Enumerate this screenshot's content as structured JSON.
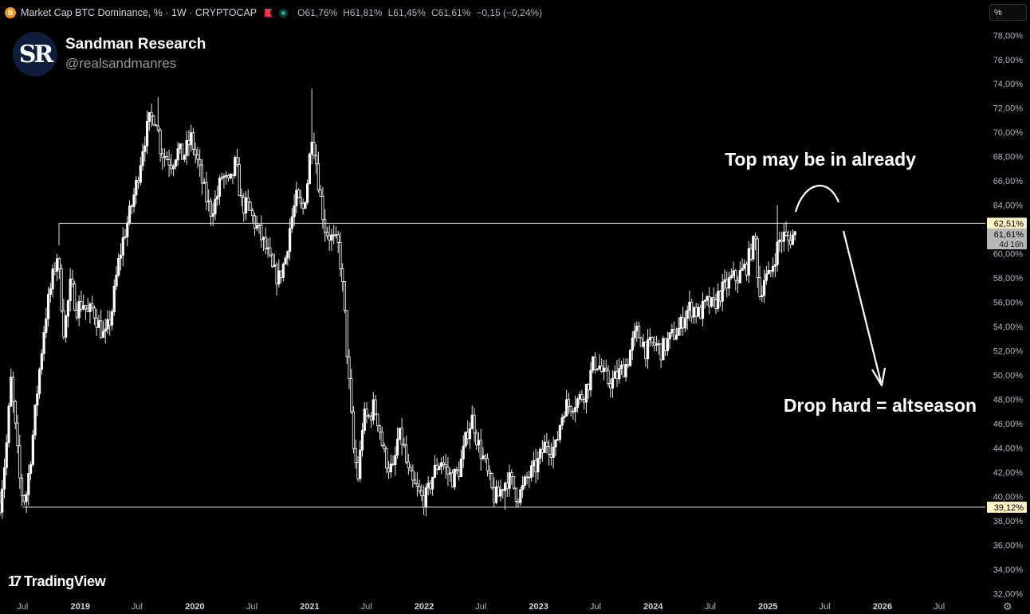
{
  "header": {
    "symbol_icon": "B",
    "title": "Market Cap BTC Dominance, % · 1W · CRYPTOCAP",
    "ohlc": [
      {
        "k": "O",
        "v": "61,76%"
      },
      {
        "k": "H",
        "v": "61,81%"
      },
      {
        "k": "L",
        "v": "61,45%"
      },
      {
        "k": "C",
        "v": "61,61%"
      },
      {
        "k": "",
        "v": "−0,15 (−0,24%)"
      }
    ],
    "scale_button": "%"
  },
  "brand": {
    "logo_text": "SR",
    "name": "Sandman Research",
    "handle": "@realsandmanres"
  },
  "footer": {
    "tradingview_mark": "17",
    "tradingview_label": "TradingView",
    "settings_icon": "gear-icon"
  },
  "colors": {
    "background": "#000000",
    "candle": "#ffffff",
    "level_label_bg": "#fff3c4",
    "current_label_bg": "#b7b7b7",
    "axis_text": "#b2b5be"
  },
  "chart_data": {
    "type": "candlestick",
    "interval": "1W",
    "ylim": [
      31.3,
      79.2
    ],
    "xlim": [
      "2018-04-20",
      "2026-11-25"
    ],
    "y_ticks": [
      {
        "v": 78,
        "label": "78,00%"
      },
      {
        "v": 76,
        "label": "76,00%"
      },
      {
        "v": 74,
        "label": "74,00%"
      },
      {
        "v": 72,
        "label": "72,00%"
      },
      {
        "v": 70,
        "label": "70,00%"
      },
      {
        "v": 68,
        "label": "68,00%"
      },
      {
        "v": 66,
        "label": "66,00%"
      },
      {
        "v": 64,
        "label": "64,00%"
      },
      {
        "v": 60,
        "label": "60,00%"
      },
      {
        "v": 58,
        "label": "58,00%"
      },
      {
        "v": 56,
        "label": "56,00%"
      },
      {
        "v": 54,
        "label": "54,00%"
      },
      {
        "v": 52,
        "label": "52,00%"
      },
      {
        "v": 50,
        "label": "50,00%"
      },
      {
        "v": 48,
        "label": "48,00%"
      },
      {
        "v": 46,
        "label": "46,00%"
      },
      {
        "v": 44,
        "label": "44,00%"
      },
      {
        "v": 42,
        "label": "42,00%"
      },
      {
        "v": 40,
        "label": "40,00%"
      },
      {
        "v": 38,
        "label": "38,00%"
      },
      {
        "v": 36,
        "label": "36,00%"
      },
      {
        "v": 34,
        "label": "34,00%"
      },
      {
        "v": 32,
        "label": "32,00%"
      }
    ],
    "x_ticks": [
      {
        "date": "2018-07-01",
        "label": "Jul",
        "bold": false
      },
      {
        "date": "2019-01-01",
        "label": "2019",
        "bold": true
      },
      {
        "date": "2019-07-01",
        "label": "Jul",
        "bold": false
      },
      {
        "date": "2020-01-01",
        "label": "2020",
        "bold": true
      },
      {
        "date": "2020-07-01",
        "label": "Jul",
        "bold": false
      },
      {
        "date": "2021-01-01",
        "label": "2021",
        "bold": true
      },
      {
        "date": "2021-07-01",
        "label": "Jul",
        "bold": false
      },
      {
        "date": "2022-01-01",
        "label": "2022",
        "bold": true
      },
      {
        "date": "2022-07-01",
        "label": "Jul",
        "bold": false
      },
      {
        "date": "2023-01-01",
        "label": "2023",
        "bold": true
      },
      {
        "date": "2023-07-01",
        "label": "Jul",
        "bold": false
      },
      {
        "date": "2024-01-01",
        "label": "2024",
        "bold": true
      },
      {
        "date": "2024-07-01",
        "label": "Jul",
        "bold": false
      },
      {
        "date": "2025-01-01",
        "label": "2025",
        "bold": true
      },
      {
        "date": "2025-07-01",
        "label": "Jul",
        "bold": false
      },
      {
        "date": "2026-01-01",
        "label": "2026",
        "bold": true
      },
      {
        "date": "2026-07-01",
        "label": "Jul",
        "bold": false
      }
    ],
    "series": [
      {
        "name": "",
        "anchors": [
          {
            "date": "2018-04-20",
            "value": 39.5
          },
          {
            "date": "2018-05-10",
            "value": 44.0
          },
          {
            "date": "2018-05-25",
            "value": 49.5
          },
          {
            "date": "2018-06-10",
            "value": 45.0
          },
          {
            "date": "2018-06-25",
            "value": 40.5
          },
          {
            "date": "2018-07-10",
            "value": 39.6
          },
          {
            "date": "2018-07-30",
            "value": 44.0
          },
          {
            "date": "2018-08-20",
            "value": 49.5
          },
          {
            "date": "2018-09-10",
            "value": 54.5
          },
          {
            "date": "2018-10-01",
            "value": 57.5
          },
          {
            "date": "2018-10-20",
            "value": 60.0
          },
          {
            "date": "2018-11-10",
            "value": 53.5
          },
          {
            "date": "2018-12-01",
            "value": 57.5
          },
          {
            "date": "2018-12-20",
            "value": 55.5
          },
          {
            "date": "2019-01-10",
            "value": 56.0
          },
          {
            "date": "2019-01-25",
            "value": 55.0
          },
          {
            "date": "2019-02-10",
            "value": 55.5
          },
          {
            "date": "2019-02-28",
            "value": 54.2
          },
          {
            "date": "2019-03-20",
            "value": 53.0
          },
          {
            "date": "2019-04-10",
            "value": 55.0
          },
          {
            "date": "2019-05-01",
            "value": 59.0
          },
          {
            "date": "2019-05-20",
            "value": 61.5
          },
          {
            "date": "2019-06-10",
            "value": 63.5
          },
          {
            "date": "2019-07-01",
            "value": 66.0
          },
          {
            "date": "2019-07-20",
            "value": 69.0
          },
          {
            "date": "2019-08-10",
            "value": 71.0
          },
          {
            "date": "2019-08-28",
            "value": 71.5
          },
          {
            "date": "2019-09-15",
            "value": 68.5
          },
          {
            "date": "2019-10-01",
            "value": 68.0
          },
          {
            "date": "2019-10-20",
            "value": 67.5
          },
          {
            "date": "2019-11-05",
            "value": 68.5
          },
          {
            "date": "2019-11-25",
            "value": 68.0
          },
          {
            "date": "2019-12-20",
            "value": 69.5
          },
          {
            "date": "2020-01-10",
            "value": 67.5
          },
          {
            "date": "2020-02-01",
            "value": 65.0
          },
          {
            "date": "2020-02-20",
            "value": 63.5
          },
          {
            "date": "2020-03-10",
            "value": 64.5
          },
          {
            "date": "2020-03-28",
            "value": 66.5
          },
          {
            "date": "2020-04-20",
            "value": 65.5
          },
          {
            "date": "2020-05-10",
            "value": 67.5
          },
          {
            "date": "2020-05-30",
            "value": 64.0
          },
          {
            "date": "2020-06-20",
            "value": 63.8
          },
          {
            "date": "2020-07-10",
            "value": 62.5
          },
          {
            "date": "2020-07-28",
            "value": 61.5
          },
          {
            "date": "2020-08-20",
            "value": 60.0
          },
          {
            "date": "2020-09-05",
            "value": 58.5
          },
          {
            "date": "2020-09-25",
            "value": 58.0
          },
          {
            "date": "2020-10-15",
            "value": 59.5
          },
          {
            "date": "2020-11-01",
            "value": 62.5
          },
          {
            "date": "2020-11-20",
            "value": 64.5
          },
          {
            "date": "2020-12-10",
            "value": 63.5
          },
          {
            "date": "2020-12-25",
            "value": 66.0
          },
          {
            "date": "2021-01-08",
            "value": 70.0
          },
          {
            "date": "2021-01-20",
            "value": 68.0
          },
          {
            "date": "2021-02-05",
            "value": 64.5
          },
          {
            "date": "2021-02-20",
            "value": 62.0
          },
          {
            "date": "2021-03-05",
            "value": 61.5
          },
          {
            "date": "2021-03-20",
            "value": 61.0
          },
          {
            "date": "2021-04-05",
            "value": 60.5
          },
          {
            "date": "2021-04-20",
            "value": 56.0
          },
          {
            "date": "2021-05-05",
            "value": 50.0
          },
          {
            "date": "2021-05-20",
            "value": 44.0
          },
          {
            "date": "2021-06-05",
            "value": 41.5
          },
          {
            "date": "2021-06-20",
            "value": 46.5
          },
          {
            "date": "2021-07-10",
            "value": 46.5
          },
          {
            "date": "2021-07-25",
            "value": 47.5
          },
          {
            "date": "2021-08-10",
            "value": 46.0
          },
          {
            "date": "2021-08-25",
            "value": 43.5
          },
          {
            "date": "2021-09-10",
            "value": 42.5
          },
          {
            "date": "2021-09-25",
            "value": 42.0
          },
          {
            "date": "2021-10-10",
            "value": 45.0
          },
          {
            "date": "2021-10-25",
            "value": 44.5
          },
          {
            "date": "2021-11-10",
            "value": 42.0
          },
          {
            "date": "2021-11-25",
            "value": 41.0
          },
          {
            "date": "2021-12-10",
            "value": 40.5
          },
          {
            "date": "2021-12-25",
            "value": 39.8
          },
          {
            "date": "2022-01-10",
            "value": 40.0
          },
          {
            "date": "2022-01-25",
            "value": 41.5
          },
          {
            "date": "2022-02-10",
            "value": 42.5
          },
          {
            "date": "2022-02-25",
            "value": 43.0
          },
          {
            "date": "2022-03-15",
            "value": 42.0
          },
          {
            "date": "2022-04-01",
            "value": 41.5
          },
          {
            "date": "2022-04-20",
            "value": 42.0
          },
          {
            "date": "2022-05-05",
            "value": 43.5
          },
          {
            "date": "2022-05-20",
            "value": 45.5
          },
          {
            "date": "2022-06-05",
            "value": 46.5
          },
          {
            "date": "2022-06-20",
            "value": 44.5
          },
          {
            "date": "2022-07-10",
            "value": 43.0
          },
          {
            "date": "2022-07-25",
            "value": 41.5
          },
          {
            "date": "2022-08-10",
            "value": 40.0
          },
          {
            "date": "2022-08-25",
            "value": 40.0
          },
          {
            "date": "2022-09-10",
            "value": 41.0
          },
          {
            "date": "2022-09-25",
            "value": 41.5
          },
          {
            "date": "2022-10-10",
            "value": 41.0
          },
          {
            "date": "2022-10-25",
            "value": 40.0
          },
          {
            "date": "2022-11-10",
            "value": 40.5
          },
          {
            "date": "2022-11-25",
            "value": 41.5
          },
          {
            "date": "2022-12-10",
            "value": 42.0
          },
          {
            "date": "2022-12-25",
            "value": 42.5
          },
          {
            "date": "2023-01-10",
            "value": 43.5
          },
          {
            "date": "2023-01-25",
            "value": 44.5
          },
          {
            "date": "2023-02-10",
            "value": 44.0
          },
          {
            "date": "2023-02-25",
            "value": 44.0
          },
          {
            "date": "2023-03-10",
            "value": 46.0
          },
          {
            "date": "2023-03-25",
            "value": 47.5
          },
          {
            "date": "2023-04-10",
            "value": 47.5
          },
          {
            "date": "2023-04-25",
            "value": 47.8
          },
          {
            "date": "2023-05-10",
            "value": 48.0
          },
          {
            "date": "2023-05-25",
            "value": 48.5
          },
          {
            "date": "2023-06-10",
            "value": 49.5
          },
          {
            "date": "2023-06-25",
            "value": 51.0
          },
          {
            "date": "2023-07-10",
            "value": 51.0
          },
          {
            "date": "2023-07-25",
            "value": 50.0
          },
          {
            "date": "2023-08-10",
            "value": 49.5
          },
          {
            "date": "2023-08-25",
            "value": 49.5
          },
          {
            "date": "2023-09-10",
            "value": 50.0
          },
          {
            "date": "2023-09-25",
            "value": 50.5
          },
          {
            "date": "2023-10-10",
            "value": 51.0
          },
          {
            "date": "2023-10-25",
            "value": 52.5
          },
          {
            "date": "2023-11-10",
            "value": 53.5
          },
          {
            "date": "2023-11-25",
            "value": 53.0
          },
          {
            "date": "2023-12-10",
            "value": 52.0
          },
          {
            "date": "2023-12-25",
            "value": 52.5
          },
          {
            "date": "2024-01-10",
            "value": 52.5
          },
          {
            "date": "2024-01-25",
            "value": 52.0
          },
          {
            "date": "2024-02-10",
            "value": 52.5
          },
          {
            "date": "2024-02-25",
            "value": 53.0
          },
          {
            "date": "2024-03-10",
            "value": 53.5
          },
          {
            "date": "2024-03-25",
            "value": 53.8
          },
          {
            "date": "2024-04-10",
            "value": 55.0
          },
          {
            "date": "2024-04-25",
            "value": 55.5
          },
          {
            "date": "2024-05-10",
            "value": 55.5
          },
          {
            "date": "2024-05-25",
            "value": 55.0
          },
          {
            "date": "2024-06-10",
            "value": 55.5
          },
          {
            "date": "2024-06-25",
            "value": 56.0
          },
          {
            "date": "2024-07-10",
            "value": 55.5
          },
          {
            "date": "2024-07-25",
            "value": 56.5
          },
          {
            "date": "2024-08-10",
            "value": 57.0
          },
          {
            "date": "2024-08-25",
            "value": 57.5
          },
          {
            "date": "2024-09-10",
            "value": 58.0
          },
          {
            "date": "2024-09-25",
            "value": 58.0
          },
          {
            "date": "2024-10-10",
            "value": 58.5
          },
          {
            "date": "2024-10-25",
            "value": 59.0
          },
          {
            "date": "2024-11-10",
            "value": 60.5
          },
          {
            "date": "2024-11-22",
            "value": 61.0
          },
          {
            "date": "2024-12-05",
            "value": 56.5
          },
          {
            "date": "2024-12-20",
            "value": 58.0
          },
          {
            "date": "2025-01-05",
            "value": 58.0
          },
          {
            "date": "2025-01-20",
            "value": 59.5
          },
          {
            "date": "2025-02-05",
            "value": 61.0
          },
          {
            "date": "2025-02-20",
            "value": 61.5
          },
          {
            "date": "2025-03-05",
            "value": 61.0
          },
          {
            "date": "2025-03-20",
            "value": 61.5
          },
          {
            "date": "2025-04-03",
            "value": 61.61
          }
        ]
      }
    ],
    "candle_extremes": {
      "high": {
        "date": "2021-01-05",
        "value": 73.6
      },
      "second_high": {
        "date": "2019-09-08",
        "value": 72.9
      },
      "recent_wick_high": {
        "date": "2025-02-02",
        "value": 64.0
      },
      "low": {
        "date": "2022-09-13",
        "value": 38.9
      }
    },
    "lines": [
      {
        "name": "resistance",
        "value": 62.51,
        "label": "62,51%",
        "from": "2018-10-25"
      },
      {
        "name": "support",
        "value": 39.12,
        "label": "39,12%",
        "from": "2018-07-01"
      }
    ],
    "current": {
      "value": 61.61,
      "label": "61,61%",
      "countdown": "4d 16h"
    },
    "annotations": [
      {
        "name": "top-annotation",
        "text": "Top may be in already"
      },
      {
        "name": "drop-annotation",
        "text": "Drop hard = altseason"
      }
    ]
  }
}
